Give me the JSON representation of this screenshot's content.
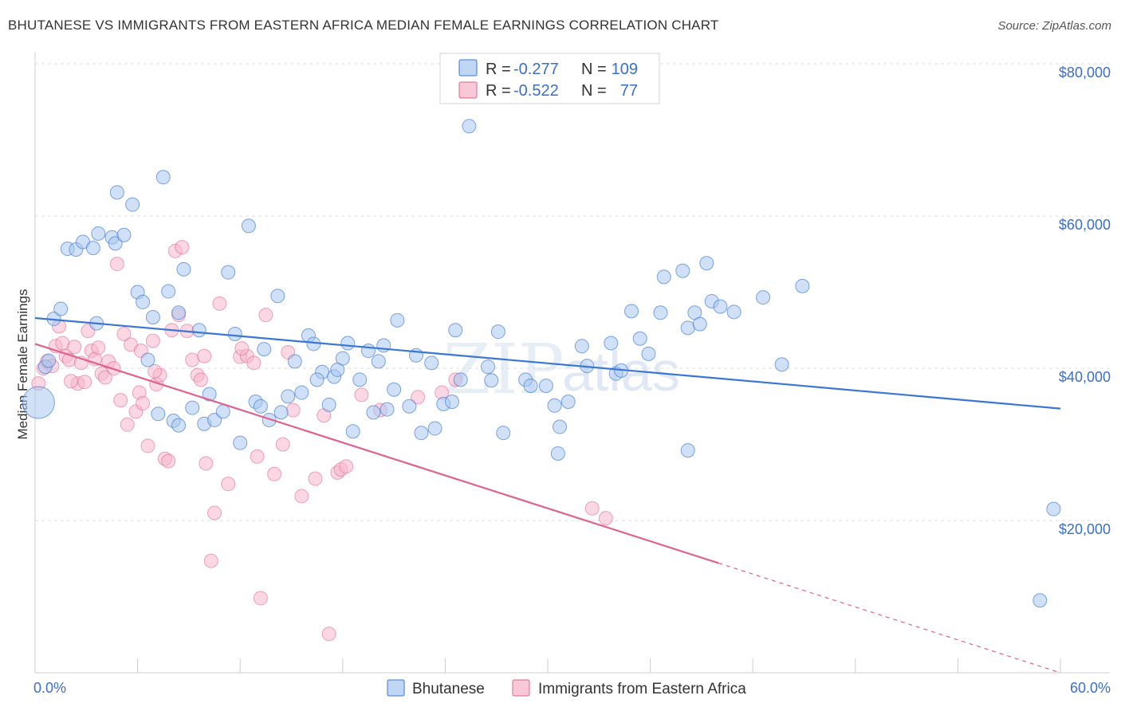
{
  "header": {
    "title": "BHUTANESE VS IMMIGRANTS FROM EASTERN AFRICA MEDIAN FEMALE EARNINGS CORRELATION CHART",
    "source": "Source: ZipAtlas.com"
  },
  "watermark": {
    "zip": "ZIP",
    "atlas": "atlas"
  },
  "legend": {
    "row1": {
      "r_label": "R =",
      "r_value": "-0.277",
      "n_label": "N =",
      "n_value": "109"
    },
    "row2": {
      "r_label": "R =",
      "r_value": "-0.522",
      "n_label": "N =",
      "n_value": "77"
    }
  },
  "bottom_legend": {
    "series1": "Bhutanese",
    "series2": "Immigrants from Eastern Africa"
  },
  "colors": {
    "blue": "#3a77d4",
    "blue_fill": "#a9c8f0",
    "pink": "#e0608e",
    "pink_fill": "#f5b6ca",
    "tick_text": "#3a6fc9"
  },
  "chart_data": {
    "type": "scatter",
    "title": "BHUTANESE VS IMMIGRANTS FROM EASTERN AFRICA MEDIAN FEMALE EARNINGS CORRELATION CHART",
    "xlabel": "",
    "ylabel": "Median Female Earnings",
    "xlim": [
      0,
      60
    ],
    "ylim": [
      0,
      80000
    ],
    "x_tick_labels": [
      "0.0%",
      "60.0%"
    ],
    "y_ticks": [
      20000,
      40000,
      60000,
      80000
    ],
    "y_tick_labels": [
      "$20,000",
      "$40,000",
      "$60,000",
      "$80,000"
    ],
    "grid": "horizontal dashed",
    "legend_position": "top-center",
    "series": [
      {
        "name": "Bhutanese",
        "R": -0.277,
        "N": 109,
        "trend": {
          "x": [
            0,
            60
          ],
          "y": [
            46600,
            34700
          ],
          "dashed_from_x": null
        },
        "points": [
          [
            0.2,
            35500
          ],
          [
            0.6,
            40200
          ],
          [
            0.8,
            41000
          ],
          [
            1.1,
            46500
          ],
          [
            1.5,
            47800
          ],
          [
            1.9,
            55700
          ],
          [
            2.4,
            55600
          ],
          [
            2.8,
            56600
          ],
          [
            3.4,
            55800
          ],
          [
            3.7,
            57700
          ],
          [
            4.5,
            57200
          ],
          [
            4.7,
            56400
          ],
          [
            5.2,
            57500
          ],
          [
            4.8,
            63100
          ],
          [
            5.7,
            61500
          ],
          [
            6.0,
            50000
          ],
          [
            6.3,
            48700
          ],
          [
            6.6,
            41100
          ],
          [
            6.9,
            46700
          ],
          [
            7.2,
            34000
          ],
          [
            7.5,
            65100
          ],
          [
            7.8,
            50100
          ],
          [
            8.1,
            33100
          ],
          [
            8.4,
            47300
          ],
          [
            8.7,
            53000
          ],
          [
            9.2,
            34800
          ],
          [
            9.6,
            45000
          ],
          [
            9.9,
            32700
          ],
          [
            10.2,
            36600
          ],
          [
            10.5,
            33200
          ],
          [
            11.0,
            34300
          ],
          [
            11.3,
            52600
          ],
          [
            11.7,
            44500
          ],
          [
            12.0,
            30200
          ],
          [
            12.5,
            58700
          ],
          [
            12.9,
            35600
          ],
          [
            13.2,
            35000
          ],
          [
            13.4,
            42500
          ],
          [
            13.7,
            33200
          ],
          [
            14.2,
            49500
          ],
          [
            14.4,
            34200
          ],
          [
            14.8,
            36300
          ],
          [
            15.2,
            40900
          ],
          [
            15.6,
            36800
          ],
          [
            16.0,
            44300
          ],
          [
            16.3,
            43200
          ],
          [
            16.8,
            39500
          ],
          [
            17.2,
            35200
          ],
          [
            17.5,
            38900
          ],
          [
            17.7,
            39800
          ],
          [
            18.0,
            41300
          ],
          [
            18.3,
            43300
          ],
          [
            18.6,
            31700
          ],
          [
            19.0,
            38500
          ],
          [
            19.5,
            42300
          ],
          [
            19.8,
            34200
          ],
          [
            20.1,
            40900
          ],
          [
            20.4,
            43000
          ],
          [
            20.6,
            34600
          ],
          [
            21.0,
            37200
          ],
          [
            21.2,
            46300
          ],
          [
            21.9,
            35000
          ],
          [
            22.3,
            41700
          ],
          [
            22.6,
            31500
          ],
          [
            23.2,
            40700
          ],
          [
            23.9,
            35300
          ],
          [
            24.4,
            35600
          ],
          [
            24.6,
            45000
          ],
          [
            24.9,
            38500
          ],
          [
            25.4,
            71800
          ],
          [
            26.5,
            40200
          ],
          [
            26.7,
            38400
          ],
          [
            27.1,
            44800
          ],
          [
            27.4,
            31500
          ],
          [
            28.7,
            38500
          ],
          [
            29.0,
            37700
          ],
          [
            29.9,
            37700
          ],
          [
            30.4,
            35100
          ],
          [
            30.7,
            32300
          ],
          [
            31.2,
            35600
          ],
          [
            30.6,
            28800
          ],
          [
            32.0,
            42900
          ],
          [
            32.3,
            40300
          ],
          [
            33.7,
            43300
          ],
          [
            34.0,
            39300
          ],
          [
            34.3,
            39700
          ],
          [
            34.9,
            47500
          ],
          [
            35.4,
            43900
          ],
          [
            35.9,
            41900
          ],
          [
            36.6,
            47300
          ],
          [
            36.8,
            52000
          ],
          [
            37.9,
            52800
          ],
          [
            38.2,
            45300
          ],
          [
            38.2,
            29200
          ],
          [
            38.6,
            47300
          ],
          [
            38.9,
            45800
          ],
          [
            39.3,
            53800
          ],
          [
            39.6,
            48800
          ],
          [
            40.1,
            48100
          ],
          [
            40.9,
            47400
          ],
          [
            42.6,
            49300
          ],
          [
            43.7,
            40500
          ],
          [
            44.9,
            50800
          ],
          [
            59.6,
            21500
          ],
          [
            58.8,
            9500
          ],
          [
            3.6,
            45900
          ],
          [
            8.4,
            32500
          ],
          [
            16.5,
            38500
          ],
          [
            23.4,
            32100
          ]
        ]
      },
      {
        "name": "Immigrants from Eastern Africa",
        "R": -0.522,
        "N": 77,
        "trend": {
          "x": [
            0,
            60
          ],
          "y": [
            43200,
            0
          ],
          "dashed_from_x": 40.0
        },
        "points": [
          [
            0.2,
            38000
          ],
          [
            0.5,
            40000
          ],
          [
            0.7,
            40900
          ],
          [
            1.0,
            40300
          ],
          [
            1.2,
            42900
          ],
          [
            1.4,
            45500
          ],
          [
            1.6,
            43300
          ],
          [
            1.8,
            41600
          ],
          [
            2.0,
            41100
          ],
          [
            2.3,
            42800
          ],
          [
            2.5,
            38000
          ],
          [
            2.7,
            40700
          ],
          [
            2.9,
            38200
          ],
          [
            3.1,
            44900
          ],
          [
            3.3,
            42300
          ],
          [
            3.5,
            41200
          ],
          [
            3.7,
            42700
          ],
          [
            3.9,
            39300
          ],
          [
            4.1,
            38800
          ],
          [
            4.3,
            40900
          ],
          [
            4.6,
            40000
          ],
          [
            4.8,
            53700
          ],
          [
            5.0,
            35800
          ],
          [
            5.2,
            44500
          ],
          [
            5.4,
            32600
          ],
          [
            5.6,
            43100
          ],
          [
            5.9,
            34300
          ],
          [
            6.1,
            36800
          ],
          [
            6.3,
            35400
          ],
          [
            6.6,
            29800
          ],
          [
            6.9,
            43600
          ],
          [
            7.1,
            37900
          ],
          [
            7.3,
            39100
          ],
          [
            7.6,
            28100
          ],
          [
            7.8,
            27800
          ],
          [
            8.0,
            45000
          ],
          [
            8.2,
            55400
          ],
          [
            8.4,
            47000
          ],
          [
            8.6,
            55900
          ],
          [
            8.9,
            44900
          ],
          [
            9.2,
            41100
          ],
          [
            9.5,
            39100
          ],
          [
            9.7,
            38500
          ],
          [
            10.0,
            27500
          ],
          [
            10.3,
            14700
          ],
          [
            10.5,
            21000
          ],
          [
            10.8,
            48500
          ],
          [
            11.3,
            24800
          ],
          [
            12.0,
            41500
          ],
          [
            12.4,
            41600
          ],
          [
            12.8,
            40700
          ],
          [
            13.0,
            28400
          ],
          [
            13.2,
            9800
          ],
          [
            13.5,
            47000
          ],
          [
            14.0,
            26100
          ],
          [
            14.5,
            30000
          ],
          [
            14.8,
            42100
          ],
          [
            15.1,
            34500
          ],
          [
            15.6,
            23200
          ],
          [
            16.4,
            25500
          ],
          [
            16.9,
            33800
          ],
          [
            17.7,
            26300
          ],
          [
            17.9,
            26700
          ],
          [
            17.2,
            5100
          ],
          [
            19.1,
            36500
          ],
          [
            20.2,
            34500
          ],
          [
            22.4,
            36200
          ],
          [
            23.8,
            36800
          ],
          [
            24.6,
            38500
          ],
          [
            32.6,
            21600
          ],
          [
            33.4,
            20300
          ],
          [
            7.0,
            39600
          ],
          [
            9.9,
            41600
          ],
          [
            2.1,
            38300
          ],
          [
            6.2,
            42300
          ],
          [
            12.1,
            42600
          ],
          [
            18.2,
            27100
          ]
        ]
      }
    ]
  }
}
